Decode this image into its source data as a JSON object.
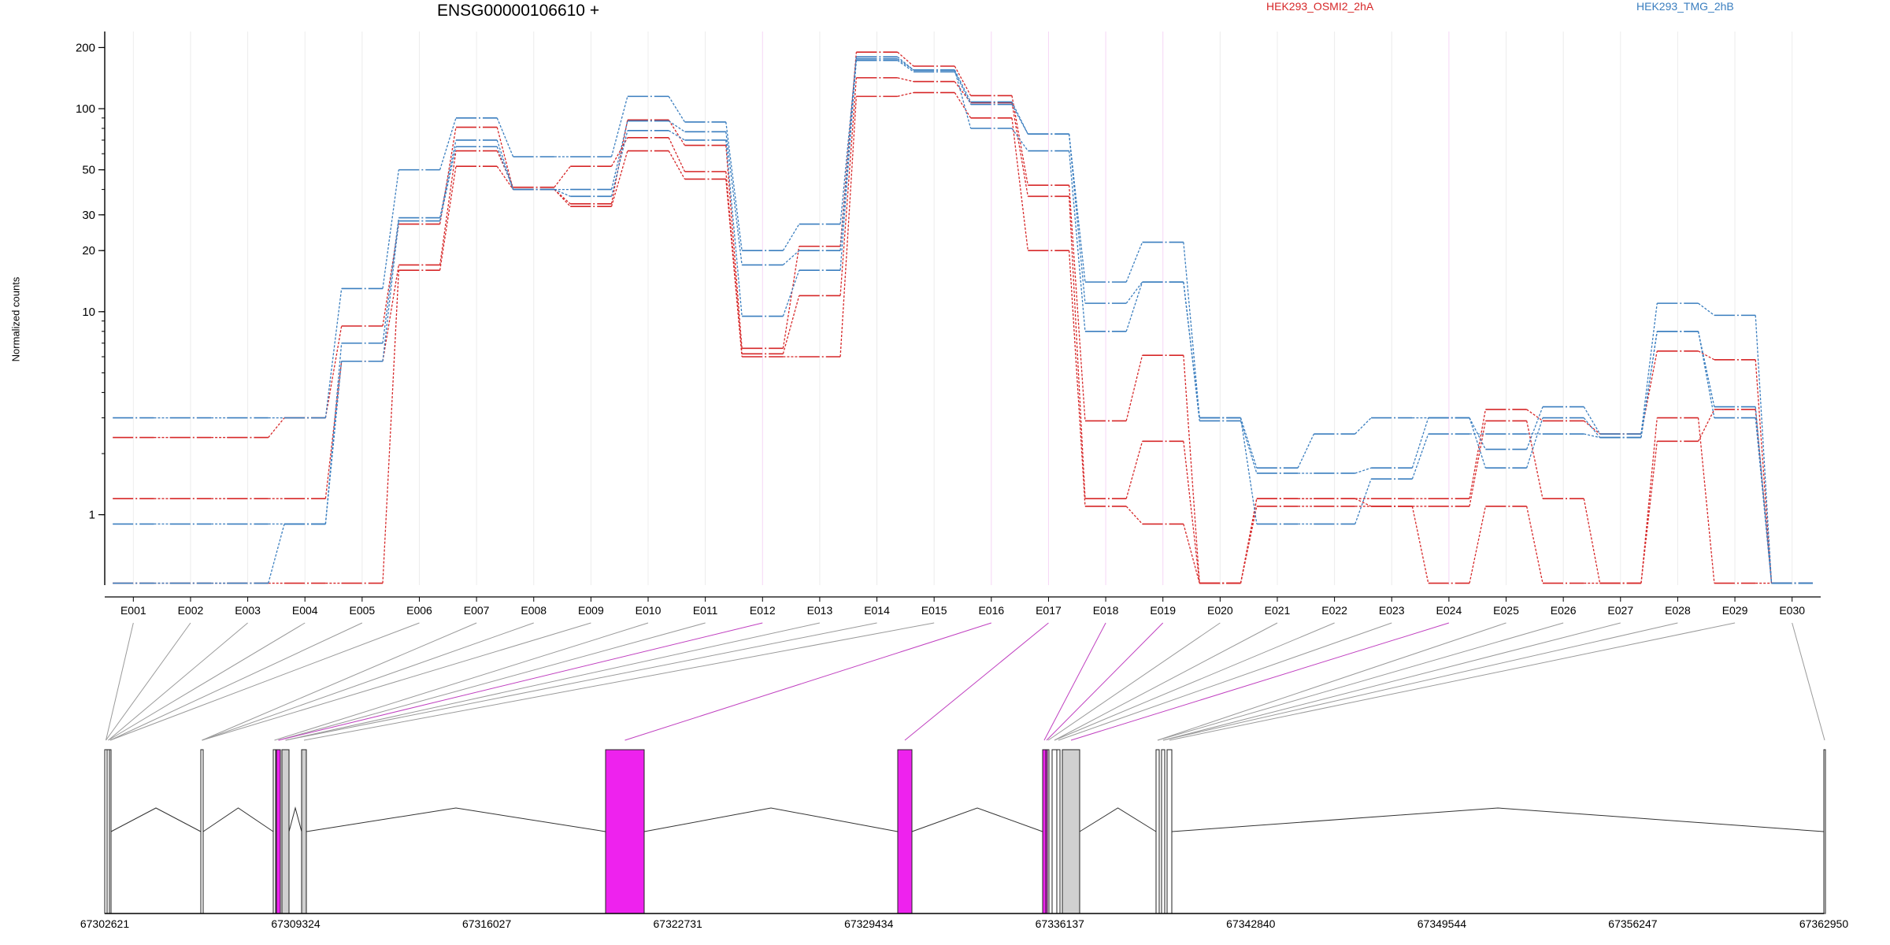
{
  "chart_data": {
    "type": "line",
    "title": "ENSG00000106610 +",
    "ylabel": "Normalized counts",
    "xlabel": "",
    "yscale": "log",
    "ylim": [
      0.45,
      240
    ],
    "yticks": [
      1,
      10,
      20,
      30,
      50,
      100,
      200
    ],
    "legend": [
      {
        "name": "HEK293_OSMI2_2hA",
        "color": "#d62728"
      },
      {
        "name": "HEK293_TMG_2hB",
        "color": "#3a7ebf"
      }
    ],
    "categories": [
      "E001",
      "E002",
      "E003",
      "E004",
      "E005",
      "E006",
      "E007",
      "E008",
      "E009",
      "E010",
      "E011",
      "E012",
      "E013",
      "E014",
      "E015",
      "E016",
      "E017",
      "E018",
      "E019",
      "E020",
      "E021",
      "E022",
      "E023",
      "E024",
      "E025",
      "E026",
      "E027",
      "E028",
      "E029",
      "E030"
    ],
    "series": [
      {
        "group": "HEK293_OSMI2_2hA",
        "color": "#d62728",
        "values": [
          2.4,
          2.4,
          2.4,
          3.0,
          8.5,
          27,
          81,
          40,
          34,
          88,
          66,
          6.6,
          21,
          190,
          162,
          116,
          42,
          2.9,
          6.1,
          0.46,
          1.2,
          1.2,
          1.2,
          1.2,
          3.3,
          2.9,
          2.5,
          6.4,
          5.8,
          0.46
        ]
      },
      {
        "group": "HEK293_OSMI2_2hA",
        "color": "#d62728",
        "values": [
          1.2,
          1.2,
          1.2,
          1.2,
          5.7,
          17,
          62,
          41,
          52,
          72,
          49,
          6.2,
          12,
          142,
          136,
          107,
          37,
          1.2,
          2.3,
          0.46,
          1.1,
          1.1,
          1.1,
          1.1,
          2.9,
          1.2,
          0.46,
          2.3,
          3.3,
          0.46
        ]
      },
      {
        "group": "HEK293_OSMI2_2hA",
        "color": "#d62728",
        "values": [
          0.46,
          0.46,
          0.46,
          0.46,
          0.46,
          16,
          52,
          40,
          33,
          62,
          45,
          6.0,
          6.0,
          115,
          120,
          90,
          20,
          1.1,
          0.9,
          0.46,
          1.2,
          1.2,
          1.1,
          0.46,
          1.1,
          0.46,
          0.46,
          3.0,
          0.46,
          0.46
        ]
      },
      {
        "group": "HEK293_TMG_2hB",
        "color": "#3a7ebf",
        "values": [
          3.0,
          3.0,
          3.0,
          3.0,
          13,
          50,
          90,
          58,
          58,
          115,
          86,
          20,
          27,
          180,
          155,
          108,
          75,
          14,
          22,
          3.0,
          1.7,
          2.5,
          3.0,
          3.0,
          2.1,
          3.4,
          2.5,
          11,
          9.6,
          0.46
        ]
      },
      {
        "group": "HEK293_TMG_2hB",
        "color": "#3a7ebf",
        "values": [
          0.9,
          0.9,
          0.9,
          0.9,
          7.0,
          29,
          70,
          40,
          40,
          87,
          77,
          17,
          20,
          173,
          152,
          105,
          75,
          11,
          14,
          2.9,
          1.6,
          1.6,
          1.7,
          3.0,
          1.7,
          3.0,
          2.4,
          8.0,
          3.4,
          0.46
        ]
      },
      {
        "group": "HEK293_TMG_2hB",
        "color": "#3a7ebf",
        "values": [
          0.46,
          0.46,
          0.46,
          0.9,
          5.7,
          28,
          65,
          40,
          37,
          78,
          70,
          9.5,
          16,
          176,
          155,
          80,
          62,
          8.0,
          14,
          3.0,
          0.9,
          0.9,
          1.5,
          2.5,
          2.5,
          2.5,
          2.4,
          8.0,
          3.0,
          0.46
        ]
      }
    ],
    "genome_axis": {
      "tick_labels": [
        "67302621",
        "67309324",
        "67316027",
        "67322731",
        "67329434",
        "67336137",
        "67342840",
        "67349544",
        "67356247",
        "67362950"
      ],
      "start": 67302621,
      "end": 67362950
    },
    "highlight_exons": [
      "E012",
      "E016",
      "E017",
      "E018",
      "E019",
      "E024"
    ],
    "colors": {
      "highlight": "#ee22ee",
      "exon_fill": "#d0d0d0",
      "connector": "#9a9a9a"
    }
  }
}
